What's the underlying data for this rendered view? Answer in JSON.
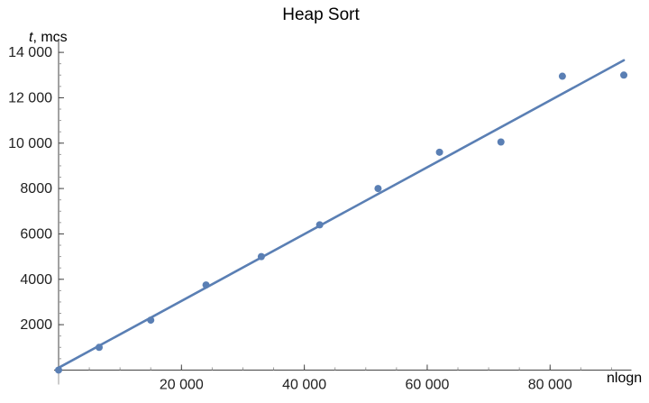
{
  "chart_data": {
    "type": "scatter",
    "title": "Heap Sort",
    "xlabel": "nlogn",
    "ylabel_var": "t",
    "ylabel_unit": "mcs",
    "xlim": [
      0,
      95000
    ],
    "ylim": [
      -300,
      14600
    ],
    "x_ticks": [
      20000,
      40000,
      60000,
      80000
    ],
    "x_tick_labels": [
      "20 000",
      "40 000",
      "60 000",
      "80 000"
    ],
    "y_ticks": [
      2000,
      4000,
      6000,
      8000,
      10000,
      12000,
      14000
    ],
    "y_tick_labels": [
      "2000",
      "4000",
      "6000",
      "8000",
      "10 000",
      "12 000",
      "14 000"
    ],
    "points": {
      "x": [
        0,
        6600,
        15000,
        24000,
        33000,
        42500,
        52000,
        62000,
        72000,
        82000,
        92000
      ],
      "y": [
        0,
        1000,
        2200,
        3750,
        5000,
        6400,
        8000,
        9600,
        10050,
        12950,
        13000
      ]
    },
    "fit_line": {
      "x": [
        0,
        92000
      ],
      "y": [
        100,
        13650
      ]
    },
    "color": "#5a7fb4",
    "grid": false
  }
}
